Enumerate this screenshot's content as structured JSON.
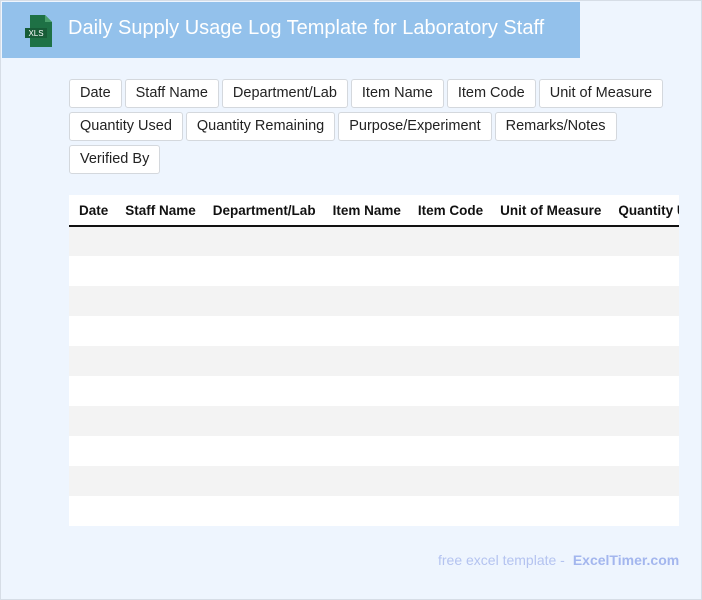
{
  "header": {
    "title": "Daily Supply Usage Log Template for Laboratory Staff",
    "icon": "xls-file-icon",
    "icon_text": "XLS"
  },
  "fields": [
    "Date",
    "Staff Name",
    "Department/Lab",
    "Item Name",
    "Item Code",
    "Unit of Measure",
    "Quantity Used",
    "Quantity Remaining",
    "Purpose/Experiment",
    "Remarks/Notes",
    "Verified By"
  ],
  "table": {
    "columns": [
      "Date",
      "Staff Name",
      "Department/Lab",
      "Item Name",
      "Item Code",
      "Unit of Measure",
      "Quantity Used",
      "Quantity Remaining",
      "Purpose/Experiment",
      "Remarks/Notes",
      "Verified By"
    ],
    "row_count": 10
  },
  "footer": {
    "text": "free excel template -",
    "brand": "ExcelTimer.com"
  },
  "colors": {
    "banner": "#93c1eb",
    "background": "#eef5fe",
    "icon": "#1e7145"
  }
}
